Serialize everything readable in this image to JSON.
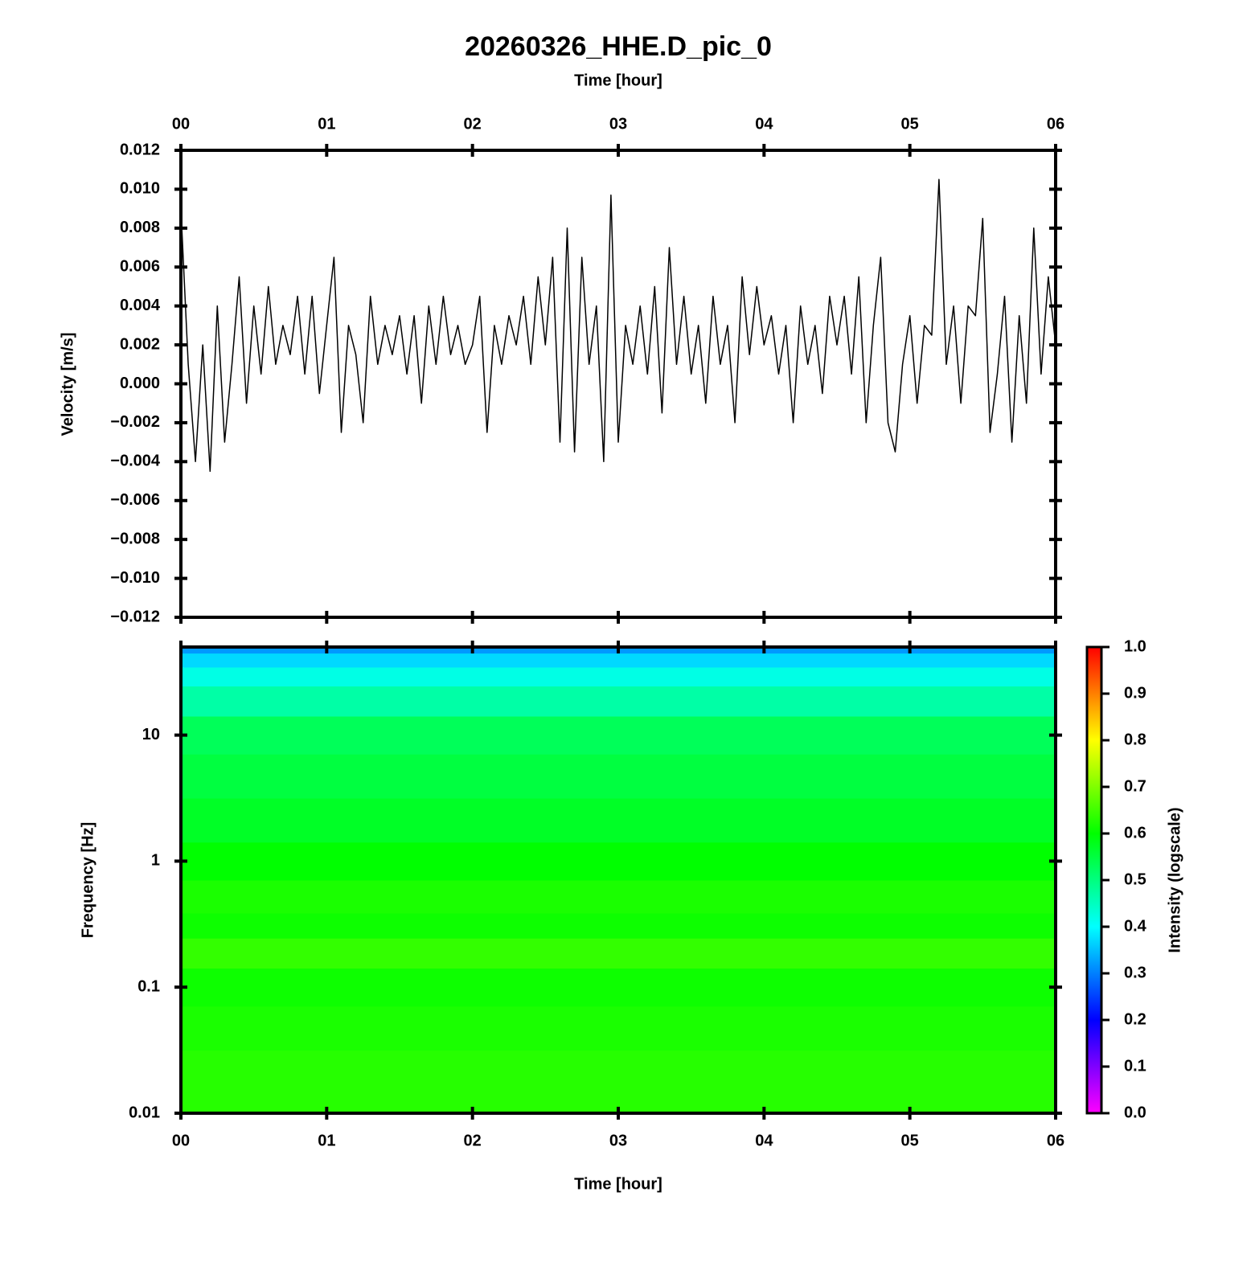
{
  "chart_data": [
    {
      "type": "line",
      "title": "20260326_HHE.D_pic_0",
      "xlabel": "Time [hour]",
      "ylabel": "Velocity [m/s]",
      "color": "#000000",
      "xlim": [
        0,
        6
      ],
      "xticks": [
        {
          "value": 0,
          "label": "00"
        },
        {
          "value": 1,
          "label": "01"
        },
        {
          "value": 2,
          "label": "02"
        },
        {
          "value": 3,
          "label": "03"
        },
        {
          "value": 4,
          "label": "04"
        },
        {
          "value": 5,
          "label": "05"
        },
        {
          "value": 6,
          "label": "06"
        }
      ],
      "xtick_side": "top",
      "ylim": [
        -0.012,
        0.012
      ],
      "yticks": [
        {
          "value": -0.012,
          "label": "−0.012"
        },
        {
          "value": -0.01,
          "label": "−0.010"
        },
        {
          "value": -0.008,
          "label": "−0.008"
        },
        {
          "value": -0.006,
          "label": "−0.006"
        },
        {
          "value": -0.004,
          "label": "−0.004"
        },
        {
          "value": -0.002,
          "label": "−0.002"
        },
        {
          "value": 0,
          "label": "0.000"
        },
        {
          "value": 0.002,
          "label": "0.002"
        },
        {
          "value": 0.004,
          "label": "0.004"
        },
        {
          "value": 0.006,
          "label": "0.006"
        },
        {
          "value": 0.008,
          "label": "0.008"
        },
        {
          "value": 0.01,
          "label": "0.010"
        },
        {
          "value": 0.012,
          "label": "0.012"
        }
      ],
      "x": [
        0,
        0.05,
        0.1,
        0.15,
        0.2,
        0.25,
        0.3,
        0.35,
        0.4,
        0.45,
        0.5,
        0.55,
        0.6,
        0.65,
        0.7,
        0.75,
        0.8,
        0.85,
        0.9,
        0.95,
        1,
        1.05,
        1.1,
        1.15,
        1.2,
        1.25,
        1.3,
        1.35,
        1.4,
        1.45,
        1.5,
        1.55,
        1.6,
        1.65,
        1.7,
        1.75,
        1.8,
        1.85,
        1.9,
        1.95,
        2,
        2.05,
        2.1,
        2.15,
        2.2,
        2.25,
        2.3,
        2.35,
        2.4,
        2.45,
        2.5,
        2.55,
        2.6,
        2.65,
        2.7,
        2.75,
        2.8,
        2.85,
        2.9,
        2.95,
        3,
        3.05,
        3.1,
        3.15,
        3.2,
        3.25,
        3.3,
        3.35,
        3.4,
        3.45,
        3.5,
        3.55,
        3.6,
        3.65,
        3.7,
        3.75,
        3.8,
        3.85,
        3.9,
        3.95,
        4,
        4.05,
        4.1,
        4.15,
        4.2,
        4.25,
        4.3,
        4.35,
        4.4,
        4.45,
        4.5,
        4.55,
        4.6,
        4.65,
        4.7,
        4.75,
        4.8,
        4.85,
        4.9,
        4.95,
        5,
        5.05,
        5.1,
        5.15,
        5.2,
        5.25,
        5.3,
        5.35,
        5.4,
        5.45,
        5.5,
        5.55,
        5.6,
        5.65,
        5.7,
        5.75,
        5.8,
        5.85,
        5.9,
        5.95,
        6
      ],
      "values": [
        0.009,
        0.001,
        -0.004,
        0.002,
        -0.0045,
        0.004,
        -0.003,
        0.001,
        0.0055,
        -0.001,
        0.004,
        0.0005,
        0.005,
        0.001,
        0.003,
        0.0015,
        0.0045,
        0.0005,
        0.0045,
        -0.0005,
        0.003,
        0.0065,
        -0.0025,
        0.003,
        0.0015,
        -0.002,
        0.0045,
        0.001,
        0.003,
        0.0015,
        0.0035,
        0.0005,
        0.0035,
        -0.001,
        0.004,
        0.001,
        0.0045,
        0.0015,
        0.003,
        0.001,
        0.002,
        0.0045,
        -0.0025,
        0.003,
        0.001,
        0.0035,
        0.002,
        0.0045,
        0.001,
        0.0055,
        0.002,
        0.0065,
        -0.003,
        0.008,
        -0.0035,
        0.0065,
        0.001,
        0.004,
        -0.004,
        0.0097,
        -0.003,
        0.003,
        0.001,
        0.004,
        0.0005,
        0.005,
        -0.0015,
        0.007,
        0.001,
        0.0045,
        0.0005,
        0.003,
        -0.001,
        0.0045,
        0.001,
        0.003,
        -0.002,
        0.0055,
        0.0015,
        0.005,
        0.002,
        0.0035,
        0.0005,
        0.003,
        -0.002,
        0.004,
        0.001,
        0.003,
        -0.0005,
        0.0045,
        0.002,
        0.0045,
        0.0005,
        0.0055,
        -0.002,
        0.003,
        0.0065,
        -0.002,
        -0.0035,
        0.001,
        0.0035,
        -0.001,
        0.003,
        0.0025,
        0.0105,
        0.001,
        0.004,
        -0.001,
        0.004,
        0.0035,
        0.0085,
        -0.0025,
        0.0005,
        0.0045,
        -0.003,
        0.0035,
        -0.001,
        0.008,
        0.0005,
        0.0055,
        0.002
      ]
    },
    {
      "type": "spectrogram",
      "xlabel": "Time [hour]",
      "ylabel": "Frequency [Hz]",
      "xlim": [
        0,
        6
      ],
      "xticks": [
        {
          "value": 0,
          "label": "00"
        },
        {
          "value": 1,
          "label": "01"
        },
        {
          "value": 2,
          "label": "02"
        },
        {
          "value": 3,
          "label": "03"
        },
        {
          "value": 4,
          "label": "04"
        },
        {
          "value": 5,
          "label": "05"
        },
        {
          "value": 6,
          "label": "06"
        }
      ],
      "xtick_side": "bottom",
      "ylim": [
        0.01,
        50
      ],
      "yticks": [
        0.01,
        0.1,
        1,
        10
      ],
      "log_y": true,
      "y": [
        0.01,
        0.02,
        0.05,
        0.1,
        0.2,
        0.3,
        0.5,
        1,
        2,
        5,
        10,
        20,
        30,
        40,
        50
      ],
      "values": [
        0.63,
        0.63,
        0.62,
        0.61,
        0.64,
        0.61,
        0.62,
        0.6,
        0.57,
        0.55,
        0.53,
        0.47,
        0.42,
        0.37,
        0.32
      ],
      "colormap": [
        "#ff00ff",
        "#0000ff",
        "#00ffff",
        "#00ff00",
        "#ffff00",
        "#ff0000"
      ],
      "zlim": [
        0,
        1
      ],
      "zticks": [
        {
          "value": 0,
          "label": "0.0"
        },
        {
          "value": 0.1,
          "label": "0.1"
        },
        {
          "value": 0.2,
          "label": "0.2"
        },
        {
          "value": 0.3,
          "label": "0.3"
        },
        {
          "value": 0.4,
          "label": "0.4"
        },
        {
          "value": 0.5,
          "label": "0.5"
        },
        {
          "value": 0.6,
          "label": "0.6"
        },
        {
          "value": 0.7,
          "label": "0.7"
        },
        {
          "value": 0.8,
          "label": "0.8"
        },
        {
          "value": 0.9,
          "label": "0.9"
        },
        {
          "value": 1,
          "label": "1.0"
        }
      ],
      "zlabel": "Intensity (logscale)"
    }
  ]
}
